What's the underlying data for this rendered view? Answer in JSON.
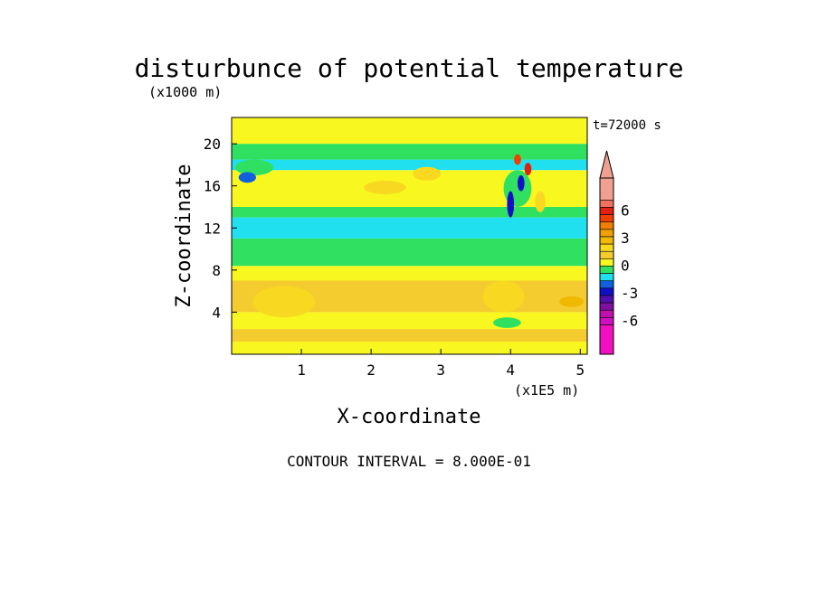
{
  "chart_data": {
    "type": "heatmap",
    "title": "disturbunce of potential temperature",
    "time_label": "t=72000 s",
    "xlabel": "X-coordinate",
    "ylabel": "Z-coordinate",
    "x_unit_label": "(x1E5 m)",
    "y_unit_label": "(x1000 m)",
    "xlim": [
      0,
      5.1
    ],
    "ylim": [
      0,
      22.5
    ],
    "x_ticks": [
      1,
      2,
      3,
      4,
      5
    ],
    "y_ticks": [
      4,
      8,
      12,
      16,
      20
    ],
    "footer": "CONTOUR INTERVAL = 8.000E-01",
    "colorbar": {
      "labels": [
        "6",
        "3",
        "0",
        "-3",
        "-6"
      ],
      "label_values": [
        6,
        3,
        0,
        -3,
        -6
      ],
      "levels": [
        {
          "min": 7.2,
          "max": 9.6,
          "color": "#f0a090"
        },
        {
          "min": 6.4,
          "max": 7.2,
          "color": "#f07060"
        },
        {
          "min": 5.6,
          "max": 6.4,
          "color": "#e02010"
        },
        {
          "min": 4.8,
          "max": 5.6,
          "color": "#f04000"
        },
        {
          "min": 4.0,
          "max": 4.8,
          "color": "#f08000"
        },
        {
          "min": 3.2,
          "max": 4.0,
          "color": "#f0a000"
        },
        {
          "min": 2.4,
          "max": 3.2,
          "color": "#f0b800"
        },
        {
          "min": 1.6,
          "max": 2.4,
          "color": "#f8d820"
        },
        {
          "min": 0.8,
          "max": 1.6,
          "color": "#f4cc30"
        },
        {
          "min": 0.0,
          "max": 0.8,
          "color": "#f8f820"
        },
        {
          "min": -0.8,
          "max": 0.0,
          "color": "#30e060"
        },
        {
          "min": -1.6,
          "max": -0.8,
          "color": "#20e0f0"
        },
        {
          "min": -2.4,
          "max": -1.6,
          "color": "#1060e0"
        },
        {
          "min": -3.2,
          "max": -2.4,
          "color": "#1010c8"
        },
        {
          "min": -4.0,
          "max": -3.2,
          "color": "#5010b0"
        },
        {
          "min": -4.8,
          "max": -4.0,
          "color": "#8010a0"
        },
        {
          "min": -5.6,
          "max": -4.8,
          "color": "#c010b0"
        },
        {
          "min": -6.4,
          "max": -5.6,
          "color": "#d010c0"
        },
        {
          "min": -9.6,
          "max": -6.4,
          "color": "#f010c0"
        }
      ]
    },
    "field_bands": [
      {
        "z": [
          0.0,
          1.2
        ],
        "color": "#f8f820"
      },
      {
        "z": [
          1.2,
          2.4
        ],
        "color": "#f4cc30"
      },
      {
        "z": [
          2.4,
          4.0
        ],
        "color": "#f8f820"
      },
      {
        "z": [
          4.0,
          7.0
        ],
        "color": "#f4cc30"
      },
      {
        "z": [
          7.0,
          8.4
        ],
        "color": "#f8f820"
      },
      {
        "z": [
          8.4,
          11.0
        ],
        "color": "#30e060"
      },
      {
        "z": [
          11.0,
          13.0
        ],
        "color": "#20e0f0"
      },
      {
        "z": [
          13.0,
          14.0
        ],
        "color": "#30e060"
      },
      {
        "z": [
          14.0,
          17.5
        ],
        "color": "#f8f820"
      },
      {
        "z": [
          17.5,
          18.5
        ],
        "color": "#20e0f0"
      },
      {
        "z": [
          18.5,
          20.0
        ],
        "color": "#30e060"
      },
      {
        "z": [
          20.0,
          22.5
        ],
        "color": "#f8f820"
      }
    ],
    "field_features": [
      {
        "x": [
          0.05,
          0.6
        ],
        "z": [
          17.0,
          18.5
        ],
        "value": -0.8
      },
      {
        "x": [
          0.1,
          0.35
        ],
        "z": [
          16.3,
          17.3
        ],
        "value": -2.4
      },
      {
        "x": [
          1.9,
          2.5
        ],
        "z": [
          15.2,
          16.5
        ],
        "value": 1.6
      },
      {
        "x": [
          2.6,
          3.0
        ],
        "z": [
          16.5,
          17.8
        ],
        "value": 1.6
      },
      {
        "x": [
          0.3,
          1.2
        ],
        "z": [
          3.5,
          6.5
        ],
        "value": 1.6
      },
      {
        "x": [
          3.6,
          4.2
        ],
        "z": [
          4.0,
          7.0
        ],
        "value": 1.6
      },
      {
        "x": [
          4.7,
          5.05
        ],
        "z": [
          4.5,
          5.5
        ],
        "value": 2.4
      },
      {
        "x": [
          3.75,
          4.15
        ],
        "z": [
          2.5,
          3.5
        ],
        "value": -0.8
      },
      {
        "x": [
          3.9,
          4.3
        ],
        "z": [
          14.0,
          17.5
        ],
        "value": -0.8
      },
      {
        "x": [
          3.95,
          4.05
        ],
        "z": [
          13.0,
          15.5
        ],
        "value": -3.2
      },
      {
        "x": [
          4.1,
          4.2
        ],
        "z": [
          15.5,
          17.0
        ],
        "value": -3.2
      },
      {
        "x": [
          4.2,
          4.3
        ],
        "z": [
          17.0,
          18.2
        ],
        "value": 5.6
      },
      {
        "x": [
          4.05,
          4.15
        ],
        "z": [
          18.0,
          19.0
        ],
        "value": 4.8
      },
      {
        "x": [
          4.35,
          4.5
        ],
        "z": [
          13.5,
          15.5
        ],
        "value": 1.6
      }
    ]
  }
}
